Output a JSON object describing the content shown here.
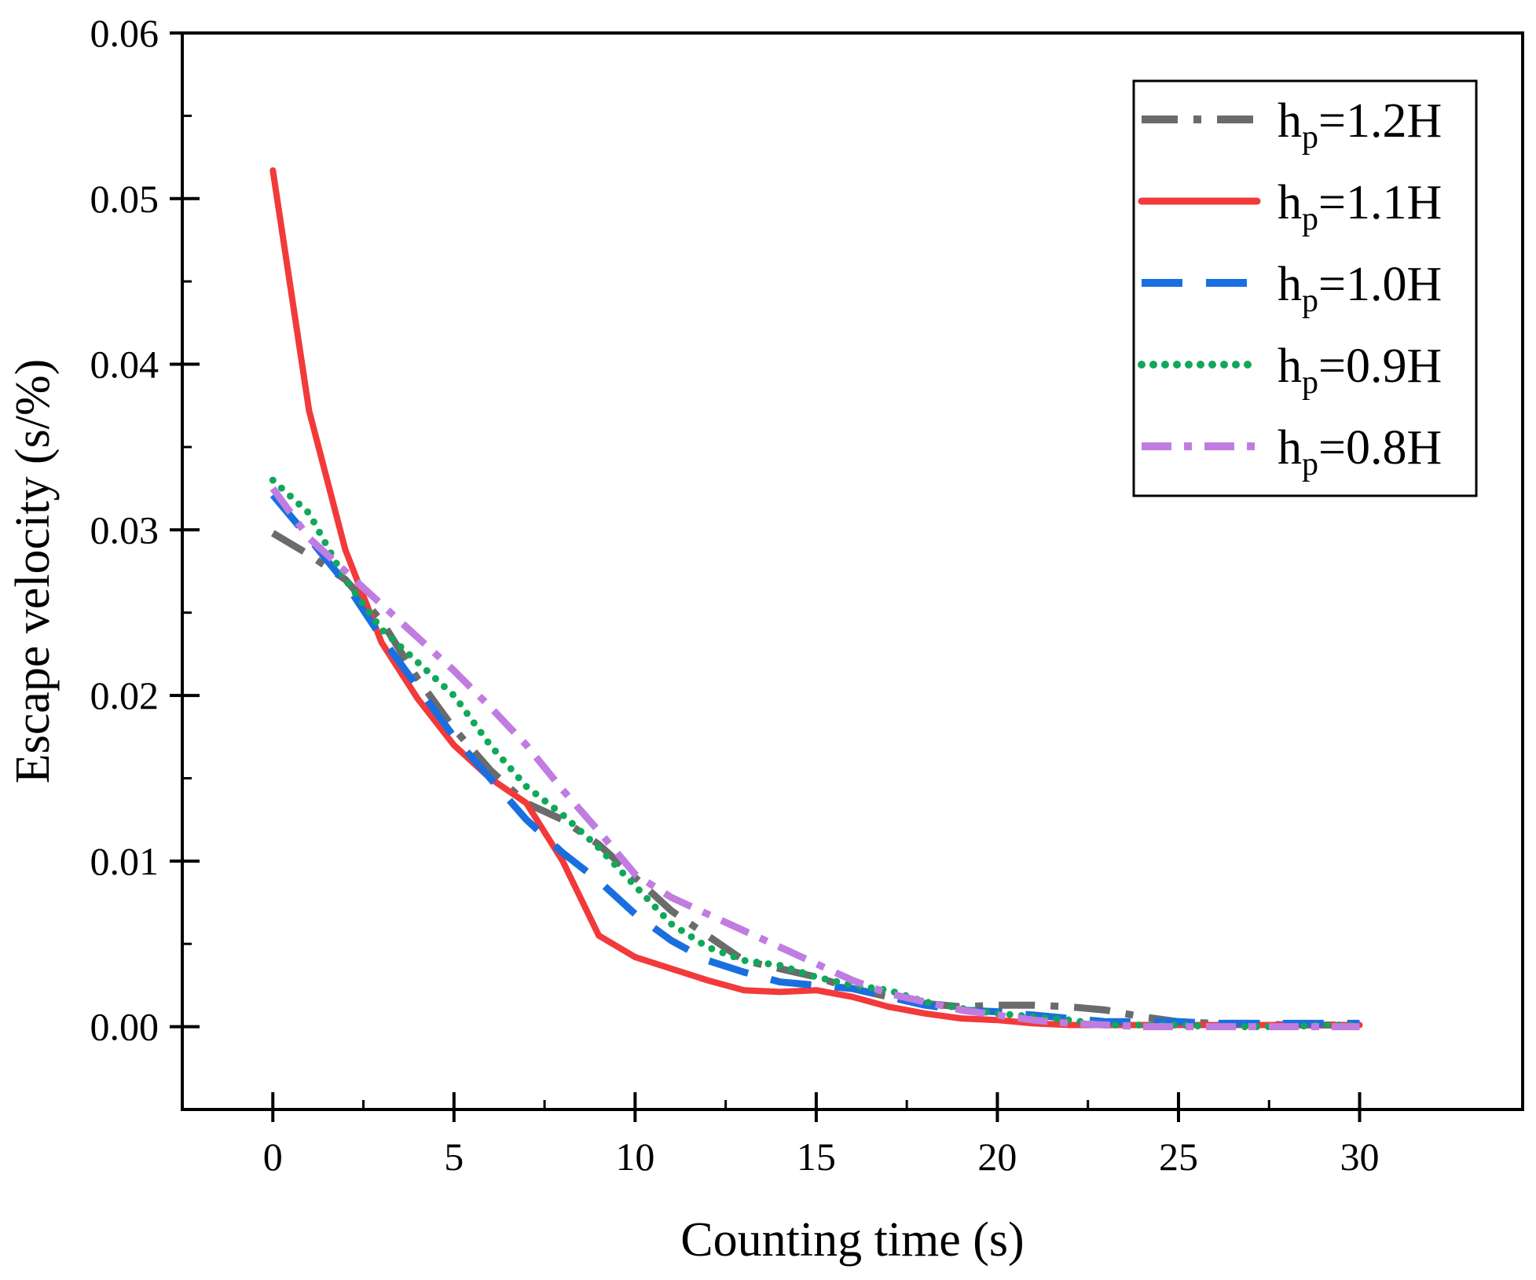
{
  "chart_data": {
    "type": "line",
    "title": "",
    "xlabel": "Counting time (s)",
    "ylabel": "Escape velocity (s/%)",
    "xlim": [
      -2.5,
      34.5
    ],
    "ylim": [
      -0.005,
      0.06
    ],
    "xticks": [
      0,
      5,
      10,
      15,
      20,
      25,
      30
    ],
    "xtick_labels": [
      "0",
      "5",
      "10",
      "15",
      "20",
      "25",
      "30"
    ],
    "yticks": [
      0.0,
      0.01,
      0.02,
      0.03,
      0.04,
      0.05,
      0.06
    ],
    "ytick_labels": [
      "0.00",
      "0.01",
      "0.02",
      "0.03",
      "0.04",
      "0.05",
      "0.06"
    ],
    "grid": false,
    "legend_position": "top-right",
    "x": [
      0,
      1,
      2,
      3,
      4,
      5,
      6,
      7,
      8,
      9,
      10,
      11,
      12,
      13,
      14,
      15,
      16,
      17,
      18,
      19,
      20,
      21,
      22,
      23,
      24,
      25,
      26,
      27,
      28,
      29,
      30
    ],
    "series": [
      {
        "name": "hp=1.2H",
        "label_main": "h",
        "label_sub": "p",
        "label_rest": "=1.2H",
        "color": "#6b6b6b",
        "style": "dash-dot",
        "values": [
          0.0298,
          0.0285,
          0.027,
          0.0245,
          0.021,
          0.018,
          0.0155,
          0.0135,
          0.0125,
          0.011,
          0.009,
          0.007,
          0.0055,
          0.004,
          0.0035,
          0.003,
          0.0023,
          0.0018,
          0.0014,
          0.0012,
          0.0013,
          0.0013,
          0.0012,
          0.001,
          0.0006,
          0.0003,
          0.0002,
          0.0002,
          0.0001,
          0.0001,
          0.0001
        ]
      },
      {
        "name": "hp=1.1H",
        "label_main": "h",
        "label_sub": "p",
        "label_rest": "=1.1H",
        "color": "#f23a3a",
        "style": "solid",
        "values": [
          0.0517,
          0.0372,
          0.0288,
          0.0232,
          0.0198,
          0.017,
          0.015,
          0.0135,
          0.01,
          0.0055,
          0.0042,
          0.0035,
          0.0028,
          0.0022,
          0.0021,
          0.0022,
          0.0018,
          0.0012,
          0.0008,
          0.0005,
          0.0004,
          0.0002,
          0.0001,
          0.0001,
          0.0001,
          0.0001,
          0.0001,
          0.0001,
          0.0001,
          0.0001,
          0.0001
        ]
      },
      {
        "name": "hp=1.0H",
        "label_main": "h",
        "label_sub": "p",
        "label_rest": "=1.0H",
        "color": "#1a6fe0",
        "style": "long-dash",
        "values": [
          0.0321,
          0.0295,
          0.0268,
          0.0235,
          0.0205,
          0.0175,
          0.015,
          0.0125,
          0.0105,
          0.0088,
          0.0068,
          0.0052,
          0.004,
          0.0033,
          0.0027,
          0.0025,
          0.0023,
          0.0018,
          0.0013,
          0.001,
          0.0009,
          0.0007,
          0.0005,
          0.0003,
          0.0003,
          0.0003,
          0.0002,
          0.0002,
          0.0002,
          0.0002,
          0.0002
        ]
      },
      {
        "name": "hp=0.9H",
        "label_main": "h",
        "label_sub": "p",
        "label_rest": "=0.9H",
        "color": "#10a85a",
        "style": "dotted",
        "values": [
          0.033,
          0.031,
          0.027,
          0.024,
          0.022,
          0.02,
          0.017,
          0.0145,
          0.0128,
          0.0108,
          0.0085,
          0.0062,
          0.0048,
          0.004,
          0.0037,
          0.003,
          0.0025,
          0.0022,
          0.0015,
          0.0011,
          0.0008,
          0.0006,
          0.0004,
          0.0001,
          0.0001,
          0.0001,
          0.0,
          0.0,
          0.0,
          0.0001,
          0.0001
        ]
      },
      {
        "name": "hp=0.8H",
        "label_main": "h",
        "label_sub": "p",
        "label_rest": "=0.8H",
        "color": "#c07ce0",
        "style": "dash-dot-short",
        "values": [
          0.0325,
          0.0295,
          0.0275,
          0.0255,
          0.0235,
          0.0215,
          0.0193,
          0.017,
          0.0143,
          0.0118,
          0.0092,
          0.0078,
          0.0068,
          0.0058,
          0.0048,
          0.0038,
          0.0028,
          0.002,
          0.0015,
          0.001,
          0.0007,
          0.0004,
          0.0002,
          0.0001,
          0.0,
          0.0,
          0.0,
          0.0,
          0.0,
          0.0,
          0.0
        ]
      }
    ]
  }
}
